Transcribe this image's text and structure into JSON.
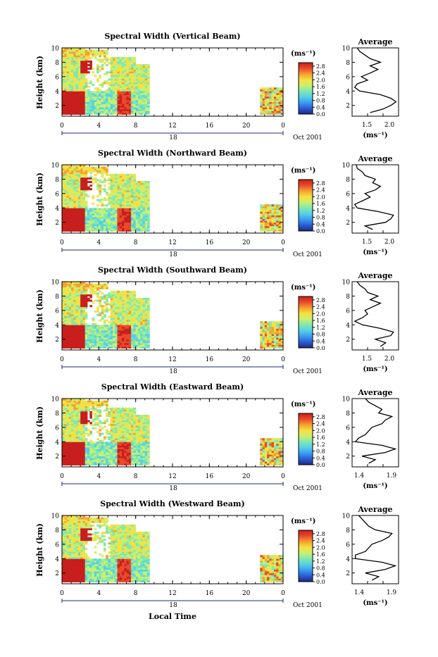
{
  "panels": [
    {
      "title": "Spectral Width (Vertical Beam)",
      "ylabel": "Height (km)",
      "unit_label": "(ms⁻¹)",
      "date_label": "Oct 2001",
      "mid_tick_label": "18",
      "avg_title": "Average",
      "avg_unit": "(ms⁻¹)",
      "avg_xticks": [
        "1.5",
        "2.0"
      ]
    },
    {
      "title": "Spectral Width (Northward Beam)",
      "ylabel": "Height (km)",
      "unit_label": "(ms⁻¹)",
      "date_label": "Oct 2001",
      "mid_tick_label": "18",
      "avg_title": "Average",
      "avg_unit": "(ms⁻¹)",
      "avg_xticks": [
        "1.5",
        "2.0"
      ]
    },
    {
      "title": "Spectral Width (Southward Beam)",
      "ylabel": "Height (km)",
      "unit_label": "(ms⁻¹)",
      "date_label": "Oct 2001",
      "mid_tick_label": "18",
      "avg_title": "Average",
      "avg_unit": "(ms⁻¹)",
      "avg_xticks": [
        "1.5",
        "2.0"
      ]
    },
    {
      "title": "Spectral Width (Eastward Beam)",
      "ylabel": "Height (km)",
      "unit_label": "(ms⁻¹)",
      "date_label": "Oct 2001",
      "mid_tick_label": "18",
      "avg_title": "Average",
      "avg_unit": "(ms⁻¹)",
      "avg_xticks": [
        "1.4",
        "1.9"
      ]
    },
    {
      "title": "Spectral Width (Westward Beam)",
      "ylabel": "Height (km)",
      "unit_label": "(ms⁻¹)",
      "date_label": "Oct 2001",
      "mid_tick_label": "18",
      "avg_title": "Average",
      "avg_unit": "(ms⁻¹)",
      "avg_xticks": [
        "1.4",
        "1.9"
      ]
    }
  ],
  "xlabel_bottom": "Local Time",
  "chart_data": {
    "type": "heatmap",
    "x_ticks": [
      "0",
      "4",
      "8",
      "12",
      "16",
      "20",
      "0"
    ],
    "xlim": [
      0,
      24
    ],
    "y_ticks": [
      "2",
      "4",
      "6",
      "8",
      "10"
    ],
    "ylim": [
      0.5,
      10
    ],
    "colorbar_ticks": [
      "0.0",
      "0.4",
      "0.8",
      "1.2",
      "1.6",
      "2.0",
      "2.4",
      "2.8"
    ],
    "colorbar_range": [
      0,
      3.0
    ],
    "colormap": [
      "#1e2a78",
      "#2a5bd7",
      "#3a9cf0",
      "#55d0e8",
      "#7ee8b0",
      "#c8f070",
      "#f7e040",
      "#f5a030",
      "#e84a2a",
      "#c81e1e"
    ],
    "data_segments_hours": [
      [
        0,
        9.5
      ],
      [
        21.5,
        24
      ]
    ],
    "avg_height_levels_km": [
      1.0,
      1.5,
      2.0,
      2.5,
      3.0,
      3.5,
      4.0,
      4.5,
      5.0,
      5.5,
      6.0,
      6.5,
      7.0,
      7.5,
      8.0,
      8.5,
      9.0,
      9.5,
      10.0
    ],
    "avg_series": [
      {
        "xlim": [
          1.2,
          2.1
        ],
        "values": [
          1.55,
          1.8,
          1.95,
          2.05,
          1.95,
          1.75,
          1.35,
          1.25,
          1.3,
          1.5,
          1.38,
          1.55,
          1.7,
          1.55,
          1.75,
          1.55,
          1.45,
          1.35,
          1.3
        ]
      },
      {
        "xlim": [
          1.2,
          2.1
        ],
        "values": [
          1.6,
          1.45,
          1.85,
          1.95,
          2.0,
          1.7,
          1.3,
          1.25,
          1.4,
          1.55,
          1.45,
          1.65,
          1.75,
          1.6,
          1.65,
          1.45,
          1.4,
          1.3,
          1.28
        ]
      },
      {
        "xlim": [
          1.2,
          2.1
        ],
        "values": [
          1.75,
          1.85,
          1.65,
          1.95,
          2.0,
          1.75,
          1.4,
          1.25,
          1.4,
          1.5,
          1.45,
          1.6,
          1.75,
          1.55,
          1.7,
          1.5,
          1.45,
          1.35,
          1.3
        ]
      },
      {
        "xlim": [
          1.3,
          2.0
        ],
        "values": [
          1.55,
          1.65,
          1.45,
          1.8,
          1.95,
          1.75,
          1.35,
          1.4,
          1.5,
          1.55,
          1.6,
          1.75,
          1.8,
          1.9,
          1.7,
          1.75,
          1.65,
          1.55,
          1.5
        ]
      },
      {
        "xlim": [
          1.3,
          2.0
        ],
        "values": [
          1.6,
          1.7,
          1.5,
          1.8,
          1.95,
          1.75,
          1.35,
          1.35,
          1.5,
          1.55,
          1.6,
          1.75,
          1.85,
          1.9,
          1.65,
          1.55,
          1.5,
          1.45,
          1.4
        ]
      }
    ]
  }
}
